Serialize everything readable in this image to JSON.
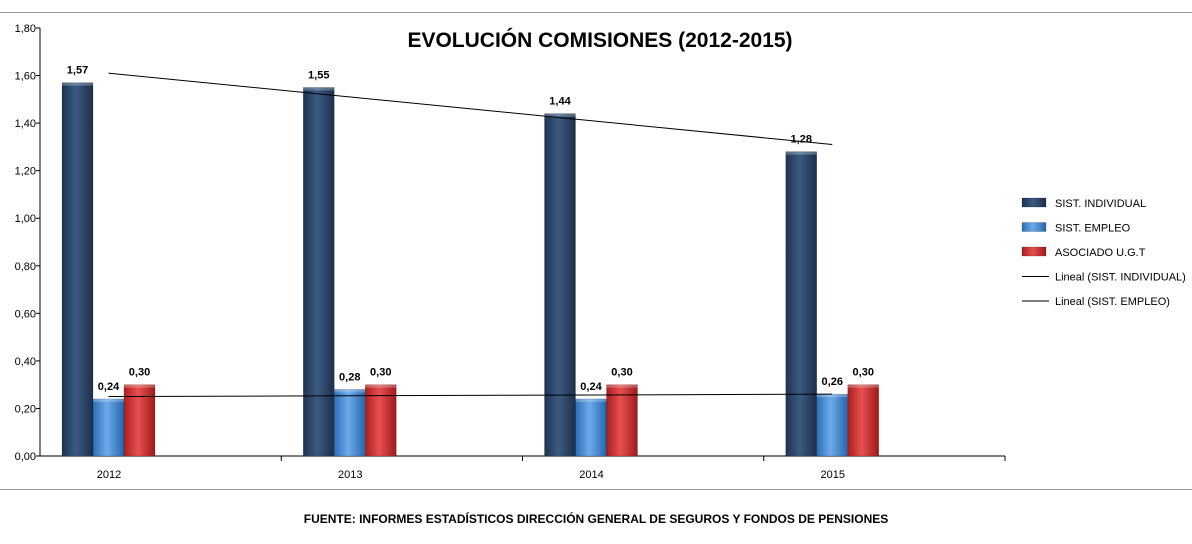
{
  "chart_data": {
    "type": "bar",
    "title": "EVOLUCIÓN COMISIONES (2012-2015)",
    "categories": [
      "2012",
      "2013",
      "2014",
      "2015"
    ],
    "ylim": [
      0,
      1.8
    ],
    "yticks": [
      "0,00",
      "0,20",
      "0,40",
      "0,60",
      "0,80",
      "1,00",
      "1,20",
      "1,40",
      "1,60",
      "1,80"
    ],
    "series": [
      {
        "name": "SIST. INDIVIDUAL",
        "values": [
          1.57,
          1.55,
          1.44,
          1.28
        ],
        "labels": [
          "1,57",
          "1,55",
          "1,44",
          "1,28"
        ],
        "color": "#2b4466"
      },
      {
        "name": "SIST. EMPLEO",
        "values": [
          0.24,
          0.28,
          0.24,
          0.26
        ],
        "labels": [
          "0,24",
          "0,28",
          "0,24",
          "0,26"
        ],
        "color": "#3d86d1"
      },
      {
        "name": "ASOCIADO U.G.T",
        "values": [
          0.3,
          0.3,
          0.3,
          0.3
        ],
        "labels": [
          "0,30",
          "0,30",
          "0,30",
          "0,30"
        ],
        "color": "#cc2d2d"
      }
    ],
    "trendlines": [
      {
        "name": "Lineal (SIST. INDIVIDUAL)",
        "start": 1.61,
        "end": 1.31
      },
      {
        "name": "Lineal (SIST. EMPLEO)",
        "start": 0.25,
        "end": 0.26
      }
    ],
    "xlabel": "",
    "ylabel": "",
    "legend_position": "right"
  },
  "footer": {
    "source": "FUENTE: INFORMES ESTADÍSTICOS DIRECCIÓN GENERAL DE SEGUROS Y FONDOS DE PENSIONES"
  }
}
